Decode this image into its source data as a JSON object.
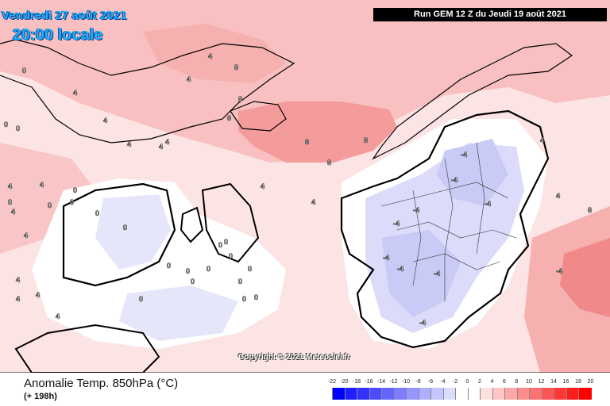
{
  "header": {
    "date": "Vendredi 27 août 2021",
    "time": "20:00 locale",
    "run": "Run GEM 12 Z du Jeudi 19 août 2021"
  },
  "copyright": "Copyright © 2021 Meteociel.fr",
  "footer": {
    "title": "Anomalie Temp. 850hPa (°C)",
    "lead_time": "(+ 198h)"
  },
  "legend": {
    "labels": [
      "-22",
      "-20",
      "-18",
      "-16",
      "-14",
      "-12",
      "-10",
      "-8",
      "-6",
      "-4",
      "-2",
      "0",
      "2",
      "4",
      "6",
      "8",
      "10",
      "12",
      "14",
      "16",
      "18",
      "20"
    ],
    "colors": [
      "#0000ff",
      "#1e1eff",
      "#3232ff",
      "#4b4bff",
      "#6464ff",
      "#7d7dff",
      "#9696ff",
      "#afafff",
      "#c4c4ff",
      "#dcdcff",
      "#ffffff",
      "#ffffff",
      "#ffe0e0",
      "#ffc4c4",
      "#ffa8a8",
      "#ff8c8c",
      "#ff7070",
      "#ff5454",
      "#ff3838",
      "#ff1c1c",
      "#ff0000"
    ]
  },
  "contour_labels": [
    "0",
    "0",
    "0",
    "0",
    "0",
    "0",
    "0",
    "0",
    "0",
    "0",
    "0",
    "0",
    "0",
    "0",
    "0",
    "0",
    "0",
    "0",
    "0",
    "0",
    "0",
    "4",
    "4",
    "4",
    "4",
    "4",
    "4",
    "4",
    "4",
    "4",
    "4",
    "4",
    "4",
    "4",
    "4",
    "4",
    "4",
    "4",
    "4",
    "4",
    "8",
    "8",
    "8",
    "8",
    "8",
    "8",
    "8",
    "-4",
    "-4",
    "-4",
    "-4",
    "-4",
    "-4",
    "-4",
    "-4",
    "-4",
    "-4"
  ],
  "map_colors": {
    "warm_light": "#fcdcdc",
    "warm_mid": "#f8b8b8",
    "warm_strong": "#f39090",
    "cool_light": "#e4e4fb",
    "cool_mid": "#cdcdf7",
    "coast": "#000000",
    "border": "#333333"
  }
}
